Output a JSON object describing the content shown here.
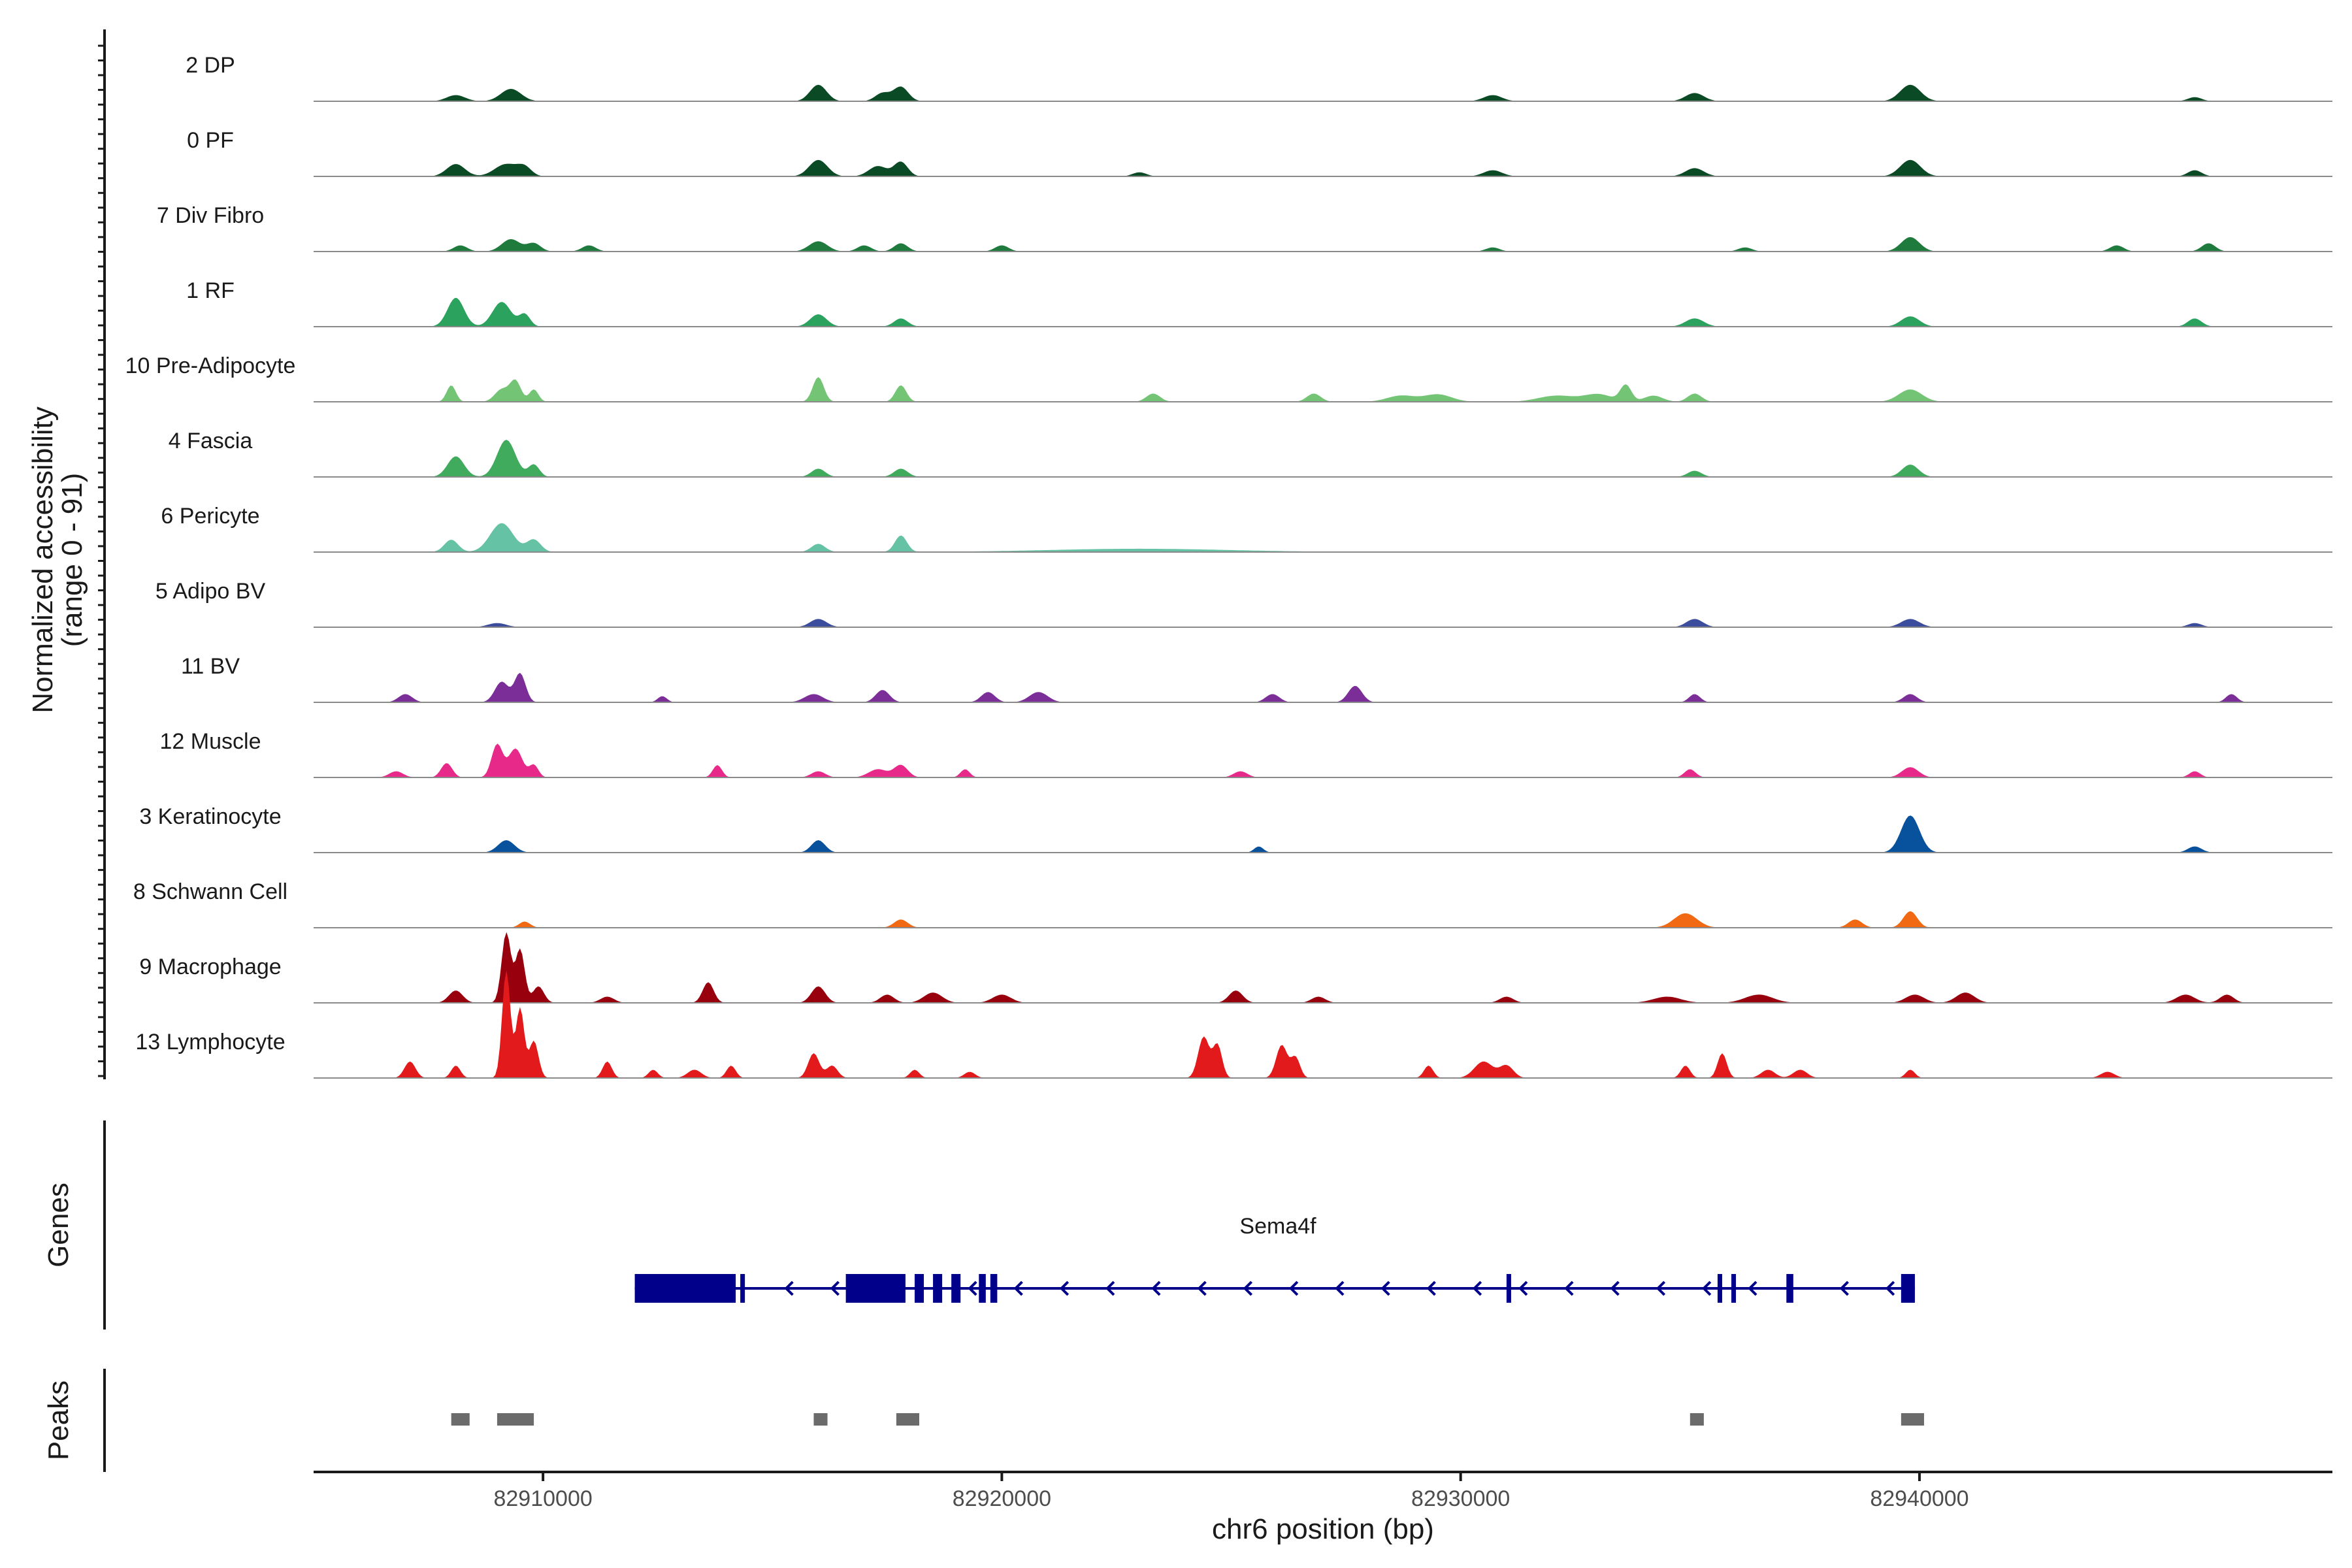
{
  "chart_data": {
    "type": "area",
    "subtype": "genome-coverage-track",
    "title": "",
    "ylabel_line1": "Normalized accessibility",
    "ylabel_line2": "(range 0 - 91)",
    "ylim": [
      0,
      91
    ],
    "xlabel": "chr6 position (bp)",
    "xlim": [
      82905000,
      82949000
    ],
    "xticks": [
      82910000,
      82920000,
      82930000,
      82940000
    ],
    "xtick_labels": [
      "82910000",
      "82920000",
      "82930000",
      "82940000"
    ],
    "grid": false,
    "legend": "none",
    "series": [
      {
        "name": "2 DP",
        "color": "#0a4a24",
        "peaks": [
          [
            82908100,
            1.5,
            200
          ],
          [
            82909300,
            3,
            220
          ],
          [
            82916000,
            4,
            180
          ],
          [
            82917400,
            2,
            160
          ],
          [
            82917800,
            3.5,
            160
          ],
          [
            82930700,
            1.5,
            200
          ],
          [
            82935100,
            2,
            200
          ],
          [
            82939800,
            4,
            220
          ],
          [
            82946000,
            1,
            150
          ]
        ]
      },
      {
        "name": "0 PF",
        "color": "#0a4a24",
        "peaks": [
          [
            82908100,
            3,
            200
          ],
          [
            82909200,
            3,
            250
          ],
          [
            82909600,
            2,
            150
          ],
          [
            82916000,
            4,
            200
          ],
          [
            82917300,
            2.5,
            200
          ],
          [
            82917800,
            3.5,
            150
          ],
          [
            82923000,
            1,
            150
          ],
          [
            82930700,
            1.5,
            200
          ],
          [
            82935100,
            2,
            200
          ],
          [
            82939800,
            4,
            220
          ],
          [
            82946000,
            1.5,
            150
          ]
        ]
      },
      {
        "name": "7 Div Fibro",
        "color": "#1f7a3d",
        "peaks": [
          [
            82908200,
            1.5,
            150
          ],
          [
            82909300,
            3,
            200
          ],
          [
            82909800,
            2,
            150
          ],
          [
            82911000,
            1.5,
            150
          ],
          [
            82916000,
            2.5,
            200
          ],
          [
            82917000,
            1.5,
            150
          ],
          [
            82917800,
            2,
            150
          ],
          [
            82920000,
            1.5,
            150
          ],
          [
            82930700,
            1,
            150
          ],
          [
            82936200,
            1,
            150
          ],
          [
            82939800,
            3.5,
            200
          ],
          [
            82944300,
            1.5,
            150
          ],
          [
            82946300,
            2,
            150
          ]
        ]
      },
      {
        "name": "1 RF",
        "color": "#2ca25f",
        "peaks": [
          [
            82908100,
            7,
            180
          ],
          [
            82909100,
            6,
            200
          ],
          [
            82909600,
            3,
            120
          ],
          [
            82916000,
            3,
            180
          ],
          [
            82917800,
            2,
            150
          ],
          [
            82935100,
            2,
            200
          ],
          [
            82939800,
            2.5,
            200
          ],
          [
            82946000,
            2,
            150
          ]
        ]
      },
      {
        "name": "10 Pre-Adipocyte",
        "color": "#74c476",
        "peaks": [
          [
            82908000,
            4,
            100
          ],
          [
            82909100,
            3,
            150
          ],
          [
            82909400,
            5,
            120
          ],
          [
            82909800,
            3,
            100
          ],
          [
            82916000,
            6,
            120
          ],
          [
            82917800,
            4,
            120
          ],
          [
            82923300,
            2,
            150
          ],
          [
            82926800,
            2,
            150
          ],
          [
            82928700,
            1.5,
            300
          ],
          [
            82929500,
            1.8,
            300
          ],
          [
            82932100,
            1.5,
            400
          ],
          [
            82933000,
            1.8,
            300
          ],
          [
            82933600,
            4,
            120
          ],
          [
            82934200,
            1.5,
            200
          ],
          [
            82935100,
            2,
            150
          ],
          [
            82939800,
            3,
            250
          ]
        ]
      },
      {
        "name": "4 Fascia",
        "color": "#41ab5d",
        "peaks": [
          [
            82908100,
            5,
            180
          ],
          [
            82909200,
            9,
            200
          ],
          [
            82909800,
            3,
            120
          ],
          [
            82916000,
            2,
            150
          ],
          [
            82917800,
            2,
            150
          ],
          [
            82935100,
            1.5,
            150
          ],
          [
            82939800,
            3,
            180
          ]
        ]
      },
      {
        "name": "6 Pericyte",
        "color": "#66c2a4",
        "peaks": [
          [
            82908000,
            3,
            150
          ],
          [
            82909100,
            7,
            250
          ],
          [
            82909800,
            3,
            150
          ],
          [
            82916000,
            2,
            150
          ],
          [
            82917800,
            4,
            130
          ],
          [
            82923000,
            0.8,
            2000
          ]
        ]
      },
      {
        "name": "5 Adipo BV",
        "color": "#3b4d9c",
        "peaks": [
          [
            82909000,
            1,
            200
          ],
          [
            82916000,
            2,
            180
          ],
          [
            82935100,
            2,
            180
          ],
          [
            82939800,
            2,
            200
          ],
          [
            82946000,
            1,
            150
          ]
        ]
      },
      {
        "name": "11 BV",
        "color": "#7b2d98",
        "peaks": [
          [
            82907000,
            2,
            150
          ],
          [
            82909100,
            5,
            150
          ],
          [
            82909500,
            7,
            120
          ],
          [
            82912600,
            1.5,
            100
          ],
          [
            82915900,
            2,
            200
          ],
          [
            82917400,
            3,
            150
          ],
          [
            82919700,
            2.5,
            150
          ],
          [
            82920800,
            2.5,
            200
          ],
          [
            82925900,
            2,
            150
          ],
          [
            82927700,
            4,
            150
          ],
          [
            82935100,
            2,
            120
          ],
          [
            82939800,
            2,
            150
          ],
          [
            82946800,
            2,
            120
          ]
        ]
      },
      {
        "name": "12 Muscle",
        "color": "#e7298a",
        "peaks": [
          [
            82906800,
            1.5,
            150
          ],
          [
            82907900,
            3.5,
            120
          ],
          [
            82909000,
            8,
            120
          ],
          [
            82909400,
            7,
            150
          ],
          [
            82909800,
            3,
            100
          ],
          [
            82913800,
            3,
            100
          ],
          [
            82916000,
            1.5,
            150
          ],
          [
            82917300,
            2,
            200
          ],
          [
            82917800,
            3,
            150
          ],
          [
            82919200,
            2,
            100
          ],
          [
            82925200,
            1.5,
            150
          ],
          [
            82935000,
            2,
            120
          ],
          [
            82939800,
            2.5,
            180
          ],
          [
            82946000,
            1.5,
            120
          ]
        ]
      },
      {
        "name": "3 Keratinocyte",
        "color": "#08519c",
        "peaks": [
          [
            82909200,
            3,
            180
          ],
          [
            82916000,
            3,
            150
          ],
          [
            82925600,
            1.5,
            100
          ],
          [
            82939800,
            9,
            200
          ],
          [
            82946000,
            1.5,
            150
          ]
        ]
      },
      {
        "name": "8 Schwann Cell",
        "color": "#f16913",
        "peaks": [
          [
            82909600,
            1.5,
            120
          ],
          [
            82917800,
            2,
            150
          ],
          [
            82934900,
            3.5,
            250
          ],
          [
            82938600,
            2,
            150
          ],
          [
            82939800,
            4,
            150
          ]
        ]
      },
      {
        "name": "9 Macrophage",
        "color": "#99000d",
        "peaks": [
          [
            82908100,
            3,
            150
          ],
          [
            82909200,
            17,
            100
          ],
          [
            82909500,
            13,
            100
          ],
          [
            82909900,
            4,
            120
          ],
          [
            82911400,
            1.5,
            150
          ],
          [
            82913600,
            5,
            120
          ],
          [
            82916000,
            4,
            150
          ],
          [
            82917500,
            2,
            150
          ],
          [
            82918500,
            2.5,
            200
          ],
          [
            82920000,
            2,
            200
          ],
          [
            82925100,
            3,
            150
          ],
          [
            82926900,
            1.5,
            150
          ],
          [
            82931000,
            1.5,
            150
          ],
          [
            82934500,
            1.5,
            300
          ],
          [
            82936500,
            2,
            300
          ],
          [
            82939900,
            2,
            200
          ],
          [
            82941000,
            2.5,
            200
          ],
          [
            82945800,
            2,
            200
          ],
          [
            82946700,
            2,
            150
          ]
        ]
      },
      {
        "name": "13 Lymphocyte",
        "color": "#e31a1c",
        "peaks": [
          [
            82907100,
            4,
            120
          ],
          [
            82908100,
            3,
            100
          ],
          [
            82909200,
            26,
            90
          ],
          [
            82909500,
            17,
            90
          ],
          [
            82909800,
            9,
            100
          ],
          [
            82911400,
            4,
            100
          ],
          [
            82912400,
            2,
            100
          ],
          [
            82913300,
            2,
            150
          ],
          [
            82914100,
            3,
            100
          ],
          [
            82915900,
            6,
            120
          ],
          [
            82916300,
            3,
            120
          ],
          [
            82918100,
            2,
            100
          ],
          [
            82919300,
            1.5,
            120
          ],
          [
            82924400,
            10,
            120
          ],
          [
            82924700,
            8,
            100
          ],
          [
            82926100,
            8,
            120
          ],
          [
            82926400,
            5,
            100
          ],
          [
            82929300,
            3,
            100
          ],
          [
            82930500,
            4,
            200
          ],
          [
            82931000,
            3,
            150
          ],
          [
            82934900,
            3,
            100
          ],
          [
            82935700,
            6,
            100
          ],
          [
            82936700,
            2,
            150
          ],
          [
            82937400,
            2,
            150
          ],
          [
            82939800,
            2,
            100
          ],
          [
            82944100,
            1.5,
            150
          ]
        ]
      }
    ],
    "genes_label": "Genes",
    "gene": {
      "name": "Sema4f",
      "strand": "-",
      "start": 82912000,
      "end": 82939900,
      "exons": [
        [
          82912000,
          82914200
        ],
        [
          82914300,
          82914400
        ],
        [
          82916600,
          82917900
        ],
        [
          82918100,
          82918300
        ],
        [
          82918500,
          82918700
        ],
        [
          82918900,
          82919100
        ],
        [
          82919500,
          82919650
        ],
        [
          82919750,
          82919900
        ],
        [
          82931000,
          82931100
        ],
        [
          82935600,
          82935700
        ],
        [
          82935900,
          82936000
        ],
        [
          82937100,
          82937250
        ],
        [
          82939600,
          82939900
        ]
      ]
    },
    "peaks_label": "Peaks",
    "peaks": [
      [
        82908000,
        82908400
      ],
      [
        82909000,
        82909800
      ],
      [
        82915900,
        82916200
      ],
      [
        82917700,
        82918200
      ],
      [
        82935000,
        82935300
      ],
      [
        82939600,
        82940100
      ]
    ]
  }
}
